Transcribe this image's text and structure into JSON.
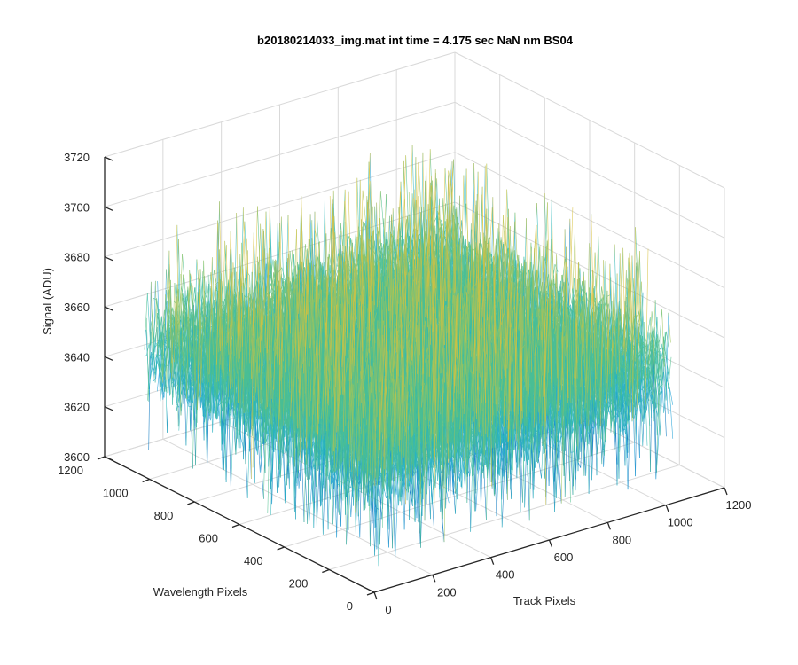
{
  "chart_data": {
    "type": "surface",
    "title": "b20180214033_img.mat int time = 4.175 sec  NaN nm BS04",
    "xlabel": "Track Pixels",
    "ylabel": "Wavelength Pixels",
    "zlabel": "Signal (ADU)",
    "xlim": [
      0,
      1200
    ],
    "ylim": [
      0,
      1200
    ],
    "zlim": [
      3600,
      3720
    ],
    "xticks": [
      "0",
      "200",
      "400",
      "600",
      "800",
      "1000",
      "1200"
    ],
    "yticks": [
      "0",
      "200",
      "400",
      "600",
      "800",
      "1000",
      "1200"
    ],
    "zticks": [
      "3600",
      "3620",
      "3640",
      "3660",
      "3680",
      "3700",
      "3720"
    ],
    "surface": {
      "x_range": [
        1,
        1024
      ],
      "y_range": [
        1,
        1024
      ],
      "mean_signal": 3652,
      "noise_range": [
        3610,
        3705
      ],
      "colormap": "parula",
      "colors": [
        "#0072bd",
        "#1a9fd6",
        "#2ab6b8",
        "#4fc08d",
        "#9ec45c",
        "#d7c13e"
      ]
    },
    "grid": true,
    "box": false
  }
}
